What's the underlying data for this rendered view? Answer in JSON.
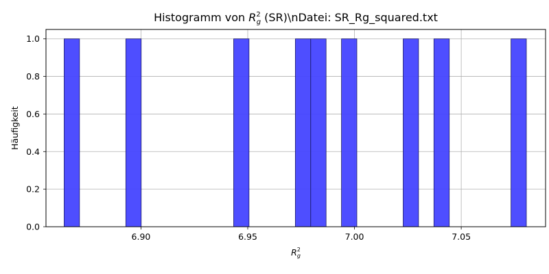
{
  "chart_data": {
    "type": "bar",
    "subtype": "histogram",
    "title_prefix": "Histogramm von ",
    "title_symbol": "R",
    "title_sup": "2",
    "title_sub": "g",
    "title_suffix": " (SR)\\nDatei: SR_Rg_squared.txt",
    "xlabel_symbol": "R",
    "xlabel_sup": "2",
    "xlabel_sub": "g",
    "ylabel": "Häufigkeit",
    "bar_color": "#4444ff",
    "bar_edge_color": "#1a1a66",
    "grid": true,
    "xlim": [
      6.8555,
      7.0895
    ],
    "ylim": [
      0,
      1.05
    ],
    "xticks": [
      {
        "value": 6.9,
        "label": "6.90"
      },
      {
        "value": 6.95,
        "label": "6.95"
      },
      {
        "value": 7.0,
        "label": "7.00"
      },
      {
        "value": 7.05,
        "label": "7.05"
      }
    ],
    "yticks": [
      {
        "value": 0.0,
        "label": "0.0"
      },
      {
        "value": 0.2,
        "label": "0.2"
      },
      {
        "value": 0.4,
        "label": "0.4"
      },
      {
        "value": 0.6,
        "label": "0.6"
      },
      {
        "value": 0.8,
        "label": "0.8"
      },
      {
        "value": 1.0,
        "label": "1.0"
      }
    ],
    "bins": [
      {
        "x0": 6.864,
        "x1": 6.8712,
        "count": 1
      },
      {
        "x0": 6.8929,
        "x1": 6.9001,
        "count": 1
      },
      {
        "x0": 6.9434,
        "x1": 6.9506,
        "count": 1
      },
      {
        "x0": 6.9723,
        "x1": 6.9795,
        "count": 1
      },
      {
        "x0": 6.9795,
        "x1": 6.9867,
        "count": 1
      },
      {
        "x0": 6.9939,
        "x1": 7.0011,
        "count": 1
      },
      {
        "x0": 7.0228,
        "x1": 7.03,
        "count": 1
      },
      {
        "x0": 7.0372,
        "x1": 7.0444,
        "count": 1
      },
      {
        "x0": 7.0733,
        "x1": 7.0805,
        "count": 1
      }
    ]
  }
}
